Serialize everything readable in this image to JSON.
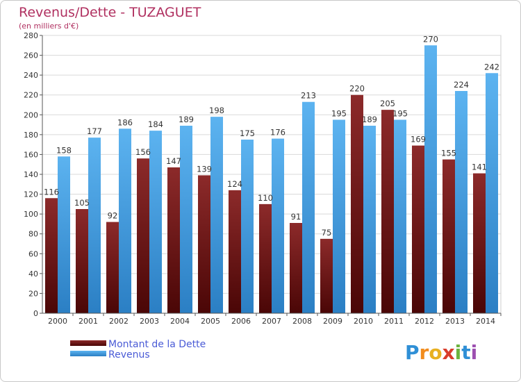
{
  "chart_data": {
    "type": "bar",
    "title": "Revenus/Dette - TUZAGUET",
    "subtitle": "(en milliers d'€)",
    "categories": [
      "2000",
      "2001",
      "2002",
      "2003",
      "2004",
      "2005",
      "2006",
      "2007",
      "2008",
      "2009",
      "2010",
      "2011",
      "2012",
      "2013",
      "2014"
    ],
    "series": [
      {
        "name": "Montant de la Dette",
        "values": [
          116,
          105,
          92,
          156,
          147,
          139,
          124,
          110,
          91,
          75,
          220,
          205,
          169,
          155,
          141
        ],
        "color": "#7a1a1a"
      },
      {
        "name": "Revenus",
        "values": [
          158,
          177,
          186,
          184,
          189,
          198,
          175,
          176,
          213,
          195,
          189,
          195,
          270,
          224,
          242
        ],
        "color": "#4aa3e8"
      }
    ],
    "ylim": [
      0,
      280
    ],
    "yticks": [
      0,
      20,
      40,
      60,
      80,
      100,
      120,
      140,
      160,
      180,
      200,
      220,
      240,
      260,
      280
    ],
    "grid": true,
    "legend_position": "bottom-left"
  },
  "logo": {
    "text": "Proxiti"
  }
}
